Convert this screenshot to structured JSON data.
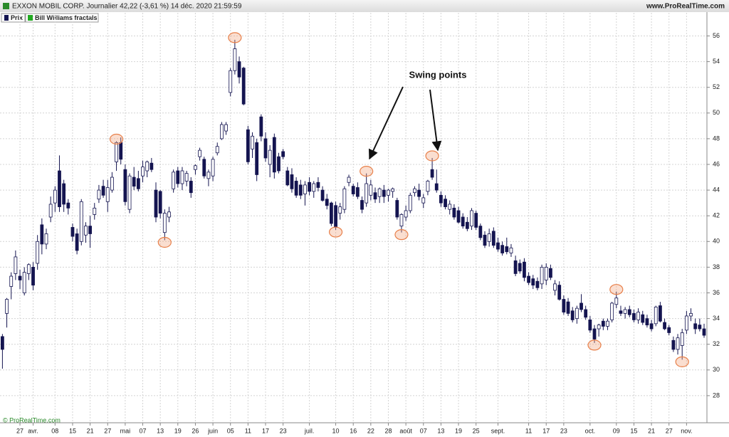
{
  "chart_data": {
    "type": "candlestick",
    "title": "EXXON MOBIL CORP. Journalier 42,22 (-3,61 %) 14 déc. 2020 21:59:59",
    "source": "www.ProRealTime.com",
    "watermark": "© ProRealTime.com",
    "legend": [
      "Prix",
      "Bill Williams fractals"
    ],
    "annotation": "Swing points",
    "up_color": "#ffffff",
    "down_color": "#141450",
    "fractal_color": "#e8804a",
    "grid": true,
    "categories": [
      null,
      null,
      null,
      null,
      "27",
      null,
      null,
      "avr.",
      null,
      null,
      null,
      null,
      "08",
      null,
      null,
      null,
      "15",
      null,
      null,
      null,
      "21",
      null,
      null,
      null,
      "27",
      null,
      null,
      null,
      "mai",
      null,
      null,
      null,
      "07",
      null,
      null,
      null,
      "13",
      null,
      null,
      null,
      "19",
      null,
      null,
      null,
      "26",
      null,
      null,
      null,
      "juin",
      null,
      null,
      null,
      "05",
      null,
      null,
      null,
      "11",
      null,
      null,
      null,
      "17",
      null,
      null,
      null,
      "23",
      null,
      null,
      null,
      null,
      null,
      "juil.",
      null,
      null,
      null,
      null,
      null,
      "10",
      null,
      null,
      null,
      "16",
      null,
      null,
      null,
      "22",
      null,
      null,
      null,
      "28",
      null,
      null,
      null,
      "août",
      null,
      null,
      null,
      "07",
      null,
      null,
      null,
      "13",
      null,
      null,
      null,
      "19",
      null,
      null,
      null,
      "25",
      null,
      null,
      null,
      null,
      "sept.",
      null,
      null,
      null,
      null,
      null,
      null,
      "11",
      null,
      null,
      null,
      "17",
      null,
      null,
      null,
      "23",
      null,
      null,
      null,
      null,
      null,
      "oct.",
      null,
      null,
      null,
      null,
      null,
      "09",
      null,
      null,
      null,
      "15",
      null,
      null,
      null,
      "21",
      null,
      null,
      null,
      "27",
      null,
      null,
      null,
      "nov.",
      null,
      null,
      null,
      null
    ],
    "open": [
      32.6,
      34.4,
      36.5,
      37.5,
      37.3,
      36,
      37.5,
      38,
      38.3,
      41.3,
      39.8,
      41.9,
      43,
      45.5,
      44.5,
      43,
      41.1,
      40.6,
      40,
      40.5,
      41.2,
      42.1,
      43.3,
      44.3,
      43.1,
      44,
      46.2,
      47.7,
      45.6,
      42.5,
      45,
      44.9,
      45.1,
      45.5,
      46.1,
      44,
      43.9,
      40.7,
      41.9,
      44.1,
      45.5,
      44.5,
      44.7,
      44.7,
      45.6,
      46.6,
      46.4,
      44.9,
      45.1,
      46.9,
      48,
      48.6,
      51.6,
      53.3,
      54,
      53.5,
      48.7,
      47.2,
      47.7,
      49.7,
      48,
      46,
      48.1,
      46.6,
      47,
      45.5,
      45.2,
      44.7,
      44.4,
      43.7,
      44.6,
      43.9,
      44.6,
      44,
      43.3,
      43,
      42.8,
      42.2,
      42.5,
      44.6,
      44.3,
      44.2,
      43.2,
      43,
      43.6,
      43.8,
      43.5,
      44,
      43.6,
      43.9,
      43.2,
      41.2,
      41.9,
      42.4,
      43.8,
      44,
      43,
      43.9,
      45.6,
      44.5,
      43.6,
      43.3,
      42.5,
      42.6,
      42.4,
      41.9,
      41.5,
      41.2,
      42.2,
      41.2,
      40.5,
      40,
      40.8,
      39.9,
      39.7,
      39.6,
      39.1,
      38.5,
      38.3,
      38.4,
      37.3,
      37.1,
      36.9,
      36.7,
      37,
      37.9,
      36.2,
      36.6,
      35.5,
      35.3,
      34.6,
      34,
      35.2,
      34.7,
      33.9,
      33.2,
      33.2,
      33.8,
      33.4,
      33.9,
      35.1,
      34.6,
      34.4,
      34.7,
      34.4,
      33.9,
      34.3,
      34,
      33.6,
      33.6,
      35,
      33.7,
      33.3,
      32.3,
      31.6,
      31.9,
      33.1,
      34.2,
      33.6,
      33.5,
      33.2
    ],
    "high": [
      32.8,
      35.6,
      37.6,
      39.3,
      37.8,
      38,
      38.3,
      38.4,
      40.5,
      41.8,
      41,
      43.5,
      44.3,
      46.7,
      44.8,
      43.3,
      41.4,
      41,
      43.3,
      41.5,
      42,
      43,
      44.4,
      44.8,
      44.8,
      45.4,
      47.8,
      48.1,
      46,
      45.3,
      45.8,
      45.5,
      46.3,
      46.3,
      46.5,
      44.6,
      44,
      42.5,
      42.7,
      45.6,
      45.8,
      45.8,
      45.5,
      45,
      46,
      47.3,
      46.6,
      45.6,
      46.6,
      47.7,
      49.3,
      49.3,
      53.5,
      55.7,
      54.4,
      53.6,
      49,
      48.5,
      48,
      49.9,
      48.5,
      47.5,
      48.4,
      46.9,
      47.2,
      45.8,
      45.7,
      45,
      44.8,
      44.7,
      45,
      44.7,
      45,
      44.3,
      43.7,
      43.1,
      43.1,
      43,
      44.3,
      45.2,
      44.5,
      44.6,
      43.5,
      45.3,
      44.8,
      44.2,
      44.2,
      44.4,
      44.1,
      44.2,
      43.4,
      42.2,
      42.8,
      43.8,
      44.3,
      44.5,
      43.7,
      44.8,
      46.5,
      45.6,
      43.9,
      43.6,
      43.2,
      42.9,
      42.7,
      42.2,
      41.9,
      42.6,
      42.4,
      41.4,
      40.8,
      41,
      41.1,
      40.3,
      40,
      40.3,
      39.8,
      38.9,
      38.6,
      38.7,
      37.6,
      37.4,
      37.2,
      38.2,
      38.3,
      38.2,
      37,
      36.9,
      35.8,
      35.6,
      34.9,
      35,
      35.9,
      35,
      34.2,
      33.5,
      33.6,
      34,
      34,
      35.3,
      36.1,
      35,
      34.9,
      35,
      34.7,
      34.8,
      34.6,
      34.3,
      33.9,
      35,
      35.3,
      34,
      33.5,
      32.6,
      32.8,
      33.2,
      34.6,
      34.8,
      34,
      34,
      33.6
    ],
    "low": [
      30.1,
      33.3,
      35.5,
      37,
      36.3,
      35.8,
      37,
      36.2,
      37.8,
      39,
      39.4,
      41.5,
      42.3,
      42.3,
      42.3,
      42.1,
      40,
      39,
      39.7,
      39.9,
      39.5,
      41.7,
      43,
      43.4,
      42.3,
      43.8,
      45.5,
      46,
      42.8,
      42.2,
      44,
      43.9,
      44.6,
      45,
      45.4,
      41.5,
      41.8,
      40.1,
      41.5,
      43.8,
      44.2,
      44,
      44.3,
      43.4,
      45.2,
      46.3,
      44.9,
      44.3,
      44.7,
      46.7,
      47.9,
      48.3,
      51.3,
      53,
      52.3,
      50.6,
      46,
      46.5,
      44.7,
      47.8,
      46.2,
      45,
      44.9,
      45.3,
      46.4,
      44.3,
      43.8,
      43.4,
      43.3,
      42.8,
      43.6,
      43.4,
      43.9,
      43.1,
      42.5,
      41.2,
      40.9,
      41.7,
      42.2,
      44.3,
      43.5,
      43.3,
      42.2,
      42.7,
      43.2,
      43,
      43,
      43,
      43.1,
      43.4,
      41.7,
      40.7,
      41.6,
      42.2,
      43.5,
      43.2,
      42.6,
      43.6,
      44.8,
      43.8,
      42.7,
      42.5,
      42.1,
      41.7,
      41.4,
      41,
      40.8,
      40.9,
      40.9,
      40.1,
      39.5,
      39.6,
      39.5,
      39.2,
      38.9,
      39,
      38.8,
      37.3,
      37.5,
      36.9,
      36.6,
      36.3,
      36.2,
      36.3,
      36.6,
      37,
      35.8,
      35.4,
      34.3,
      34.2,
      33.7,
      33.6,
      34.5,
      33.9,
      32.9,
      32.1,
      32.6,
      33.1,
      33.1,
      33.7,
      34.8,
      34.2,
      34,
      34.1,
      33.7,
      33.6,
      33.5,
      33.3,
      33,
      33.4,
      33.7,
      33.1,
      32.7,
      31.4,
      31.2,
      30.8,
      32.8,
      33.8,
      32.8,
      33,
      32.5
    ],
    "close": [
      31.6,
      35.5,
      37.3,
      38.8,
      37,
      37.6,
      38.2,
      36.6,
      40,
      39.8,
      40.6,
      42.9,
      44,
      42.7,
      42.9,
      42.6,
      40.4,
      39.3,
      43.1,
      41.2,
      40.6,
      42.6,
      44,
      43.6,
      44.2,
      45,
      47.7,
      46.4,
      43.1,
      45.1,
      44.3,
      44.1,
      45.8,
      46.2,
      45.6,
      41.9,
      42.2,
      42.2,
      42.3,
      45.4,
      44.5,
      45.5,
      45.3,
      43.8,
      45.9,
      47.1,
      45.1,
      45.4,
      46.4,
      47.4,
      49.1,
      49.1,
      53.3,
      55,
      52.8,
      50.7,
      46.2,
      48.2,
      45.2,
      48.2,
      46.5,
      47.1,
      45.4,
      45.5,
      46.6,
      44.4,
      44.1,
      43.6,
      43.6,
      44.4,
      43.9,
      44.5,
      44.2,
      43.2,
      42.8,
      41.4,
      41.1,
      42.7,
      44.1,
      45,
      43.7,
      43.5,
      42.5,
      44.5,
      44.4,
      43.3,
      44.1,
      43.5,
      44,
      44.1,
      41.9,
      42.1,
      42.4,
      43.6,
      44.1,
      43.5,
      43.4,
      44.7,
      45,
      44,
      43,
      42.7,
      42.9,
      41.9,
      41.5,
      41.2,
      41,
      42.4,
      41.1,
      40.3,
      39.7,
      40.6,
      39.7,
      39.4,
      39.1,
      39.2,
      39.5,
      37.5,
      37.7,
      37.2,
      36.8,
      36.6,
      36.4,
      38,
      38,
      37.2,
      36.7,
      35.5,
      34.5,
      34.4,
      33.9,
      34.8,
      34.7,
      34.1,
      33.1,
      32.4,
      33.5,
      33.4,
      33.8,
      35.2,
      35.6,
      34.4,
      34.7,
      34.3,
      33.9,
      34.5,
      33.7,
      33.5,
      33.2,
      34.9,
      33.8,
      33.2,
      32.9,
      31.6,
      32.5,
      32.9,
      34.2,
      34.4,
      33.2,
      33.2,
      32.7
    ],
    "fractal_highs": [
      26,
      53,
      83,
      98,
      140
    ],
    "fractal_lows": [
      37,
      76,
      91,
      135,
      155
    ],
    "ylim": [
      26,
      57.8
    ],
    "yticks": [
      28,
      30,
      32,
      34,
      36,
      38,
      40,
      42,
      44,
      46,
      48,
      50,
      52,
      54,
      56
    ]
  }
}
